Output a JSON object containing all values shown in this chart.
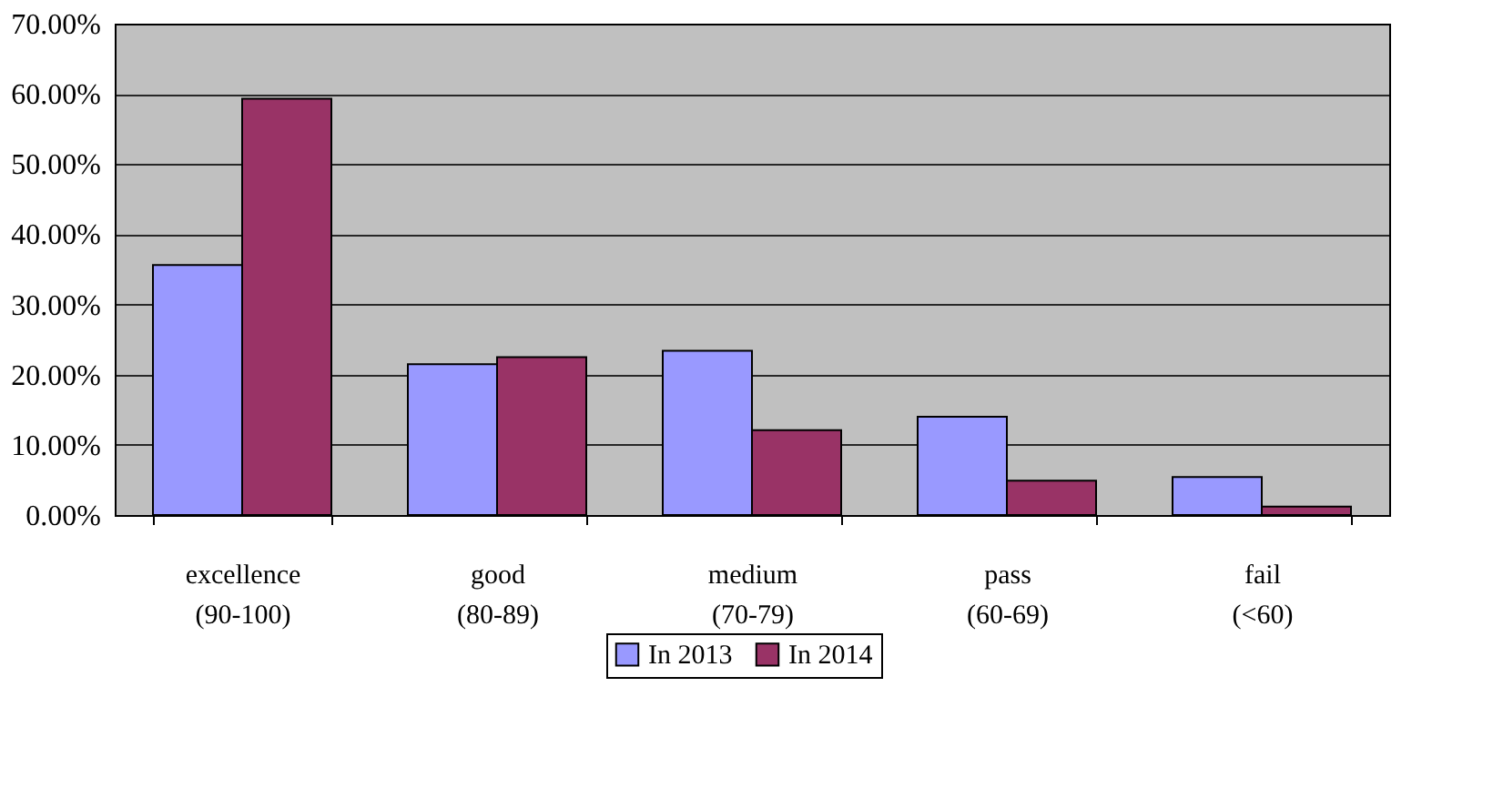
{
  "chart_data": {
    "type": "bar",
    "categories": [
      "excellence\n(90-100)",
      "good\n(80-89)",
      "medium\n(70-79)",
      "pass\n(60-69)",
      "fail\n(<60)"
    ],
    "series": [
      {
        "name": "In 2013",
        "color": "#9999ff",
        "values": [
          35.6,
          21.5,
          23.4,
          14.0,
          5.4
        ]
      },
      {
        "name": "In 2014",
        "color": "#993366",
        "values": [
          59.3,
          22.5,
          12.1,
          4.9,
          1.2
        ]
      }
    ],
    "ylim": [
      0,
      70
    ],
    "yticks": [
      {
        "value": 0,
        "label": "0.00%"
      },
      {
        "value": 10,
        "label": "10.00%"
      },
      {
        "value": 20,
        "label": "20.00%"
      },
      {
        "value": 30,
        "label": "30.00%"
      },
      {
        "value": 40,
        "label": "40.00%"
      },
      {
        "value": 50,
        "label": "50.00%"
      },
      {
        "value": 60,
        "label": "60.00%"
      },
      {
        "value": 70,
        "label": "70.00%"
      }
    ],
    "grid": "y",
    "legend": "bottom"
  }
}
